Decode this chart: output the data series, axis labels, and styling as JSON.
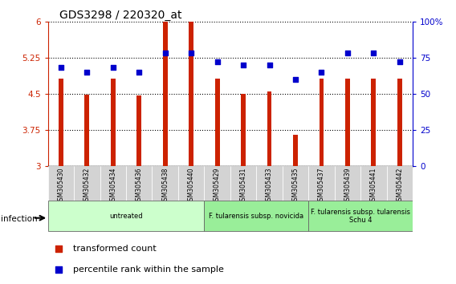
{
  "title": "GDS3298 / 220320_at",
  "samples": [
    "GSM305430",
    "GSM305432",
    "GSM305434",
    "GSM305436",
    "GSM305438",
    "GSM305440",
    "GSM305429",
    "GSM305431",
    "GSM305433",
    "GSM305435",
    "GSM305437",
    "GSM305439",
    "GSM305441",
    "GSM305442"
  ],
  "bar_values": [
    4.82,
    4.48,
    4.82,
    4.47,
    6.0,
    6.0,
    4.82,
    4.5,
    4.55,
    3.65,
    4.82,
    4.82,
    4.82,
    4.82
  ],
  "percentile_values": [
    68,
    65,
    68,
    65,
    78,
    78,
    72,
    70,
    70,
    60,
    65,
    78,
    78,
    72
  ],
  "bar_color": "#cc2200",
  "dot_color": "#0000cc",
  "ylim_left": [
    3,
    6
  ],
  "ylim_right": [
    0,
    100
  ],
  "yticks_left": [
    3,
    3.75,
    4.5,
    5.25,
    6
  ],
  "yticks_right": [
    0,
    25,
    50,
    75,
    100
  ],
  "ytick_labels_left": [
    "3",
    "3.75",
    "4.5",
    "5.25",
    "6"
  ],
  "ytick_labels_right": [
    "0",
    "25",
    "50",
    "75",
    "100%"
  ],
  "groups": [
    {
      "label": "untreated",
      "start": 0,
      "end": 6,
      "color": "#ccffcc"
    },
    {
      "label": "F. tularensis subsp. novicida",
      "start": 6,
      "end": 10,
      "color": "#99ee99"
    },
    {
      "label": "F. tularensis subsp. tularensis\nSchu 4",
      "start": 10,
      "end": 14,
      "color": "#99ee99"
    }
  ],
  "infection_label": "infection",
  "legend_red": "transformed count",
  "legend_blue": "percentile rank within the sample",
  "background_color": "#ffffff",
  "bar_width": 0.18
}
